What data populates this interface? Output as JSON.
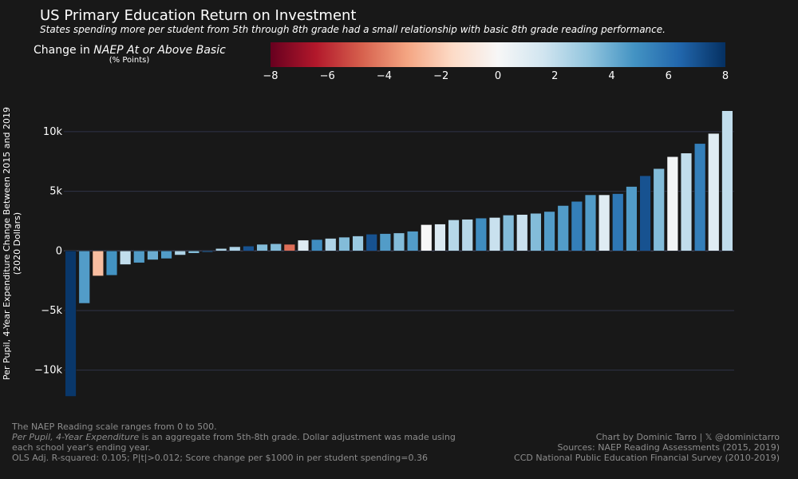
{
  "title": "US Primary Education Return on Investment",
  "subtitle": "States spending more per student from 5th through 8th grade had a small relationship with basic 8th grade reading performance.",
  "colorbar": {
    "title_prefix": "Change in ",
    "title_italic": "NAEP At or Above Basic",
    "subtitle": "(% Points)",
    "range": [
      -8,
      8
    ],
    "ticks": [
      -8,
      -6,
      -4,
      -2,
      0,
      2,
      4,
      6,
      8
    ],
    "tick_labels": [
      "−8",
      "−6",
      "−4",
      "−2",
      "0",
      "2",
      "4",
      "6",
      "8"
    ],
    "colors": [
      "#67001f",
      "#b2182b",
      "#d6604d",
      "#f4a582",
      "#fddbc7",
      "#f7f7f7",
      "#d1e5f0",
      "#92c5de",
      "#4393c3",
      "#2166ac",
      "#053061"
    ]
  },
  "footer": {
    "left_line1": "The NAEP Reading scale ranges from 0 to 500.",
    "left_line2_italic": "Per Pupil, 4-Year Expenditure",
    "left_line2_rest": " is an aggregate from 5th-8th grade. Dollar adjustment was made using each school year's ending year.",
    "left_line3": "OLS Adj. R-squared: 0.105; P|t|>0.012; Score change per $1000 in per student spending=0.36",
    "right_line1": "Chart by Dominic Tarro | 𝕏 @dominictarro",
    "right_line2": "Sources: NAEP Reading Assessments (2015, 2019)",
    "right_line3": "CCD National Public Education Financial Survey (2010-2019)"
  },
  "chart_data": {
    "type": "bar",
    "title": "US Primary Education Return on Investment",
    "ylabel": "Per Pupil, 4-Year Expenditure Change Between 2015 and 2019",
    "ylabel_line2": "(2020 Dollars)",
    "ylim": [
      -12300,
      12000
    ],
    "yticks": [
      -10000,
      -5000,
      0,
      5000,
      10000
    ],
    "ytick_labels": [
      "−10k",
      "−5k",
      "0",
      "5k",
      "10k"
    ],
    "grid": true,
    "values": [
      -12200,
      -4400,
      -2100,
      -2050,
      -1150,
      -1000,
      -750,
      -650,
      -350,
      -200,
      -100,
      200,
      350,
      400,
      550,
      600,
      550,
      900,
      950,
      1050,
      1150,
      1250,
      1400,
      1450,
      1500,
      1650,
      2200,
      2250,
      2600,
      2650,
      2750,
      2800,
      3000,
      3050,
      3150,
      3300,
      3800,
      4150,
      4700,
      4700,
      4800,
      5400,
      6300,
      6900,
      7900,
      8200,
      9000,
      9850,
      11750
    ],
    "color_values": [
      7.8,
      4.5,
      -2.5,
      4.8,
      2,
      4.5,
      4,
      4.5,
      2.5,
      3.5,
      6,
      2.5,
      2.5,
      7,
      3.5,
      3.5,
      -4.5,
      1,
      5,
      2.5,
      3.5,
      3,
      7,
      4.5,
      3.5,
      4.5,
      0,
      1.2,
      2.3,
      2.3,
      5,
      1.8,
      3.5,
      1.8,
      3.5,
      4.5,
      4.5,
      5.5,
      4.5,
      1,
      5.8,
      4.5,
      7,
      3.5,
      0.2,
      2,
      5.5,
      1,
      2
    ]
  }
}
